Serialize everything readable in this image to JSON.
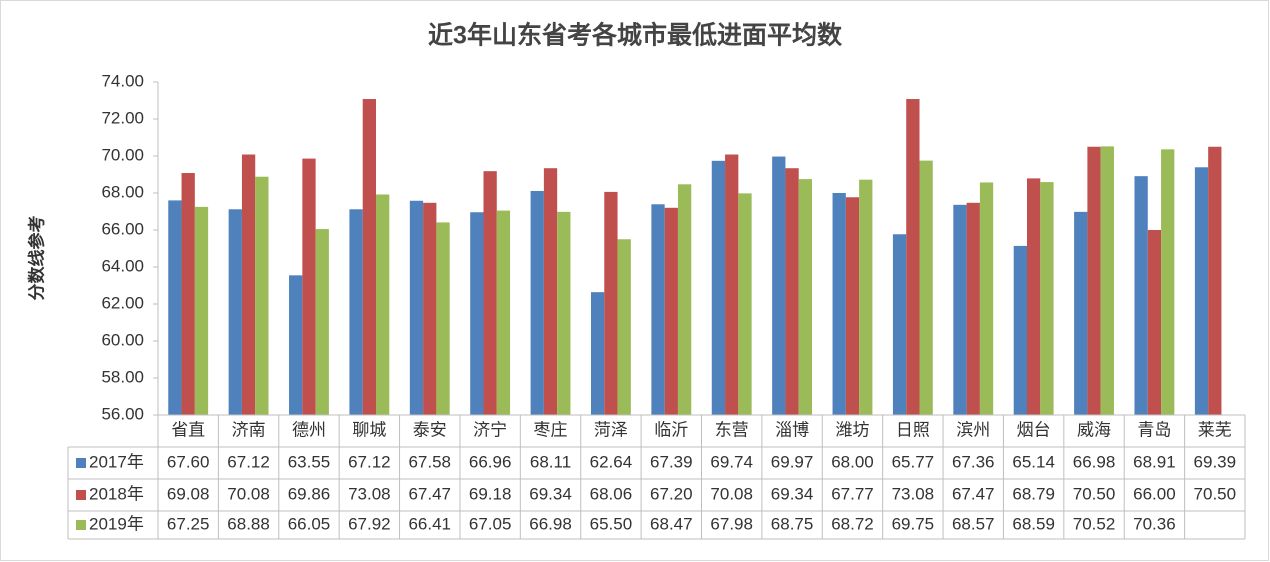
{
  "chart_data": {
    "type": "bar",
    "title": "近3年山东省考各城市最低进面平均数",
    "y_label": "分数线参考",
    "categories": [
      "省直",
      "济南",
      "德州",
      "聊城",
      "泰安",
      "济宁",
      "枣庄",
      "菏泽",
      "临沂",
      "东营",
      "淄博",
      "潍坊",
      "日照",
      "滨州",
      "烟台",
      "威海",
      "青岛",
      "莱芜"
    ],
    "series": [
      {
        "name": "2017年",
        "color": "#4f81bd",
        "values": [
          67.6,
          67.12,
          63.55,
          67.12,
          67.58,
          66.96,
          68.11,
          62.64,
          67.39,
          69.74,
          69.97,
          68,
          65.77,
          67.36,
          65.14,
          66.98,
          68.91,
          69.39
        ],
        "value_labels": [
          "67.60",
          "67.12",
          "63.55",
          "67.12",
          "67.58",
          "66.96",
          "68.11",
          "62.64",
          "67.39",
          "69.74",
          "69.97",
          "68.00",
          "65.77",
          "67.36",
          "65.14",
          "66.98",
          "68.91",
          "69.39"
        ]
      },
      {
        "name": "2018年",
        "color": "#c0504d",
        "values": [
          69.08,
          70.08,
          69.86,
          73.08,
          67.47,
          69.18,
          69.34,
          68.06,
          67.2,
          70.08,
          69.34,
          67.77,
          73.08,
          67.47,
          68.79,
          70.5,
          66,
          70.5
        ],
        "value_labels": [
          "69.08",
          "70.08",
          "69.86",
          "73.08",
          "67.47",
          "69.18",
          "69.34",
          "68.06",
          "67.20",
          "70.08",
          "69.34",
          "67.77",
          "73.08",
          "67.47",
          "68.79",
          "70.50",
          "66.00",
          "70.50"
        ]
      },
      {
        "name": "2019年",
        "color": "#9bbb59",
        "values": [
          67.25,
          68.88,
          66.05,
          67.92,
          66.41,
          67.05,
          66.98,
          65.5,
          68.47,
          67.98,
          68.75,
          68.72,
          69.75,
          68.57,
          68.59,
          70.52,
          70.36,
          null
        ],
        "value_labels": [
          "67.25",
          "68.88",
          "66.05",
          "67.92",
          "66.41",
          "67.05",
          "66.98",
          "65.50",
          "68.47",
          "67.98",
          "68.75",
          "68.72",
          "69.75",
          "68.57",
          "68.59",
          "70.52",
          "70.36",
          null
        ]
      }
    ],
    "ylim": [
      56,
      74
    ],
    "yticks": [
      {
        "value": 56,
        "label": "56.00"
      },
      {
        "value": 58,
        "label": "58.00"
      },
      {
        "value": 60,
        "label": "60.00"
      },
      {
        "value": 62,
        "label": "62.00"
      },
      {
        "value": 64,
        "label": "64.00"
      },
      {
        "value": 66,
        "label": "66.00"
      },
      {
        "value": 68,
        "label": "68.00"
      },
      {
        "value": 70,
        "label": "70.00"
      },
      {
        "value": 72,
        "label": "72.00"
      },
      {
        "value": 74,
        "label": "74.00"
      }
    ],
    "grid": false
  }
}
